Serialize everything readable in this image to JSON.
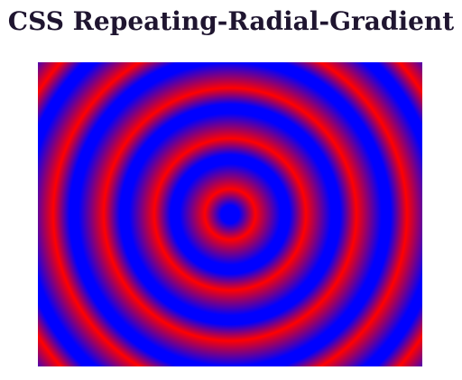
{
  "page": {
    "title": "CSS Repeating-Radial-Gradient"
  },
  "gradient": {
    "type": "repeating-radial-gradient",
    "shape": "circle",
    "colors": [
      "#0000ff",
      "#ff0000"
    ]
  }
}
